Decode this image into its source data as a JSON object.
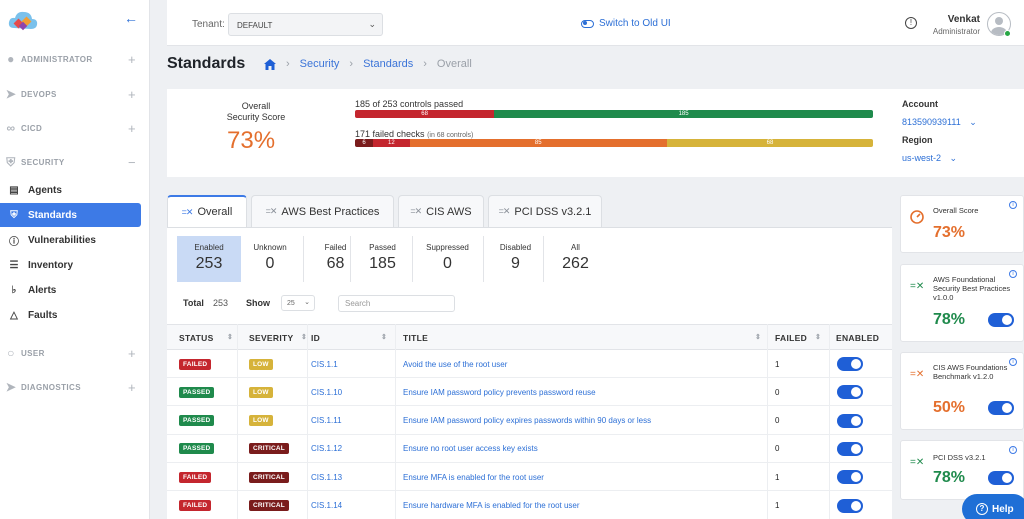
{
  "sidebar": {
    "collapse_icon": "arrow-left-icon",
    "sections": [
      {
        "label": "ADMINISTRATOR",
        "icon": "user-icon",
        "toggle": "+"
      },
      {
        "label": "DEVOPS",
        "icon": "rocket-icon",
        "toggle": "+"
      },
      {
        "label": "CICD",
        "icon": "infinity-icon",
        "toggle": "+"
      },
      {
        "label": "SECURITY",
        "icon": "shield-icon",
        "toggle": "−"
      },
      {
        "label": "USER",
        "icon": "user-icon",
        "toggle": "+"
      },
      {
        "label": "DIAGNOSTICS",
        "icon": "rocket-icon",
        "toggle": "+"
      }
    ],
    "items": [
      {
        "label": "Agents",
        "icon": "agents-icon"
      },
      {
        "label": "Standards",
        "icon": "shield-check-icon"
      },
      {
        "label": "Vulnerabilities",
        "icon": "circle-alert-icon"
      },
      {
        "label": "Inventory",
        "icon": "layers-icon"
      },
      {
        "label": "Alerts",
        "icon": "bell-icon"
      },
      {
        "label": "Faults",
        "icon": "warning-icon"
      }
    ]
  },
  "topbar": {
    "tenant_label": "Tenant:",
    "tenant_value": "DEFAULT",
    "switch_label": "Switch to Old UI",
    "user_name": "Venkat",
    "user_role": "Administrator"
  },
  "breadcrumb": {
    "title": "Standards",
    "items": [
      "Security",
      "Standards",
      "Overall"
    ]
  },
  "score": {
    "label_line1": "Overall",
    "label_line2": "Security Score",
    "value": "73%",
    "passed_label": "185 of 253 controls passed",
    "passed_segments": [
      {
        "value": 68,
        "label": "68",
        "color": "#c4262e"
      },
      {
        "value": 185,
        "label": "185",
        "color": "#1f8a4c"
      }
    ],
    "failed_label": "171 failed checks",
    "failed_sub": "(in 68 controls)",
    "failed_segments": [
      {
        "value": 6,
        "label": "6",
        "color": "#7a1c1c"
      },
      {
        "value": 12,
        "label": "12",
        "color": "#c4262e"
      },
      {
        "value": 85,
        "label": "85",
        "color": "#e46f2d"
      },
      {
        "value": 68,
        "label": "68",
        "color": "#d6b33a"
      }
    ],
    "account_label": "Account",
    "account_value": "813590939111",
    "region_label": "Region",
    "region_value": "us-west-2"
  },
  "tabs": [
    {
      "label": "Overall",
      "active": true
    },
    {
      "label": "AWS Best Practices",
      "active": false
    },
    {
      "label": "CIS AWS",
      "active": false
    },
    {
      "label": "PCI DSS v3.2.1",
      "active": false
    }
  ],
  "stats": [
    {
      "label": "Enabled",
      "value": "253"
    },
    {
      "label": "Unknown",
      "value": "0"
    },
    {
      "label": "Failed",
      "value": "68"
    },
    {
      "label": "Passed",
      "value": "185"
    },
    {
      "label": "Suppressed",
      "value": "0"
    },
    {
      "label": "Disabled",
      "value": "9"
    },
    {
      "label": "All",
      "value": "262"
    }
  ],
  "table_controls": {
    "total_label": "Total",
    "total_value": "253",
    "show_label": "Show",
    "show_value": "25",
    "search_placeholder": "Search"
  },
  "table": {
    "headers": [
      "STATUS",
      "SEVERITY",
      "ID",
      "TITLE",
      "FAILED",
      "ENABLED"
    ],
    "rows": [
      {
        "status": "FAILED",
        "severity": "LOW",
        "id": "CIS.1.1",
        "title": "Avoid the use of the root user",
        "failed": "1"
      },
      {
        "status": "PASSED",
        "severity": "LOW",
        "id": "CIS.1.10",
        "title": "Ensure IAM password policy prevents password reuse",
        "failed": "0"
      },
      {
        "status": "PASSED",
        "severity": "LOW",
        "id": "CIS.1.11",
        "title": "Ensure IAM password policy expires passwords within 90 days or less",
        "failed": "0"
      },
      {
        "status": "PASSED",
        "severity": "CRITICAL",
        "id": "CIS.1.12",
        "title": "Ensure no root user access key exists",
        "failed": "0"
      },
      {
        "status": "FAILED",
        "severity": "CRITICAL",
        "id": "CIS.1.13",
        "title": "Ensure MFA is enabled for the root user",
        "failed": "1"
      },
      {
        "status": "FAILED",
        "severity": "CRITICAL",
        "id": "CIS.1.14",
        "title": "Ensure hardware MFA is enabled for the root user",
        "failed": "1"
      }
    ]
  },
  "right_cards": [
    {
      "title": "Overall Score",
      "value": "73%",
      "color": "#e46f2d",
      "icon": "gauge-icon",
      "toggle": false
    },
    {
      "title": "AWS Foundational Security Best Practices v1.0.0",
      "value": "78%",
      "color": "#1f8a4c",
      "icon": "checklist-icon",
      "toggle": true
    },
    {
      "title": "CIS AWS Foundations Benchmark v1.2.0",
      "value": "50%",
      "color": "#e46f2d",
      "icon": "checklist-icon",
      "toggle": true
    },
    {
      "title": "PCI DSS v3.2.1",
      "value": "78%",
      "color": "#1f8a4c",
      "icon": "checklist-icon",
      "toggle": true
    }
  ],
  "help_label": "Help"
}
